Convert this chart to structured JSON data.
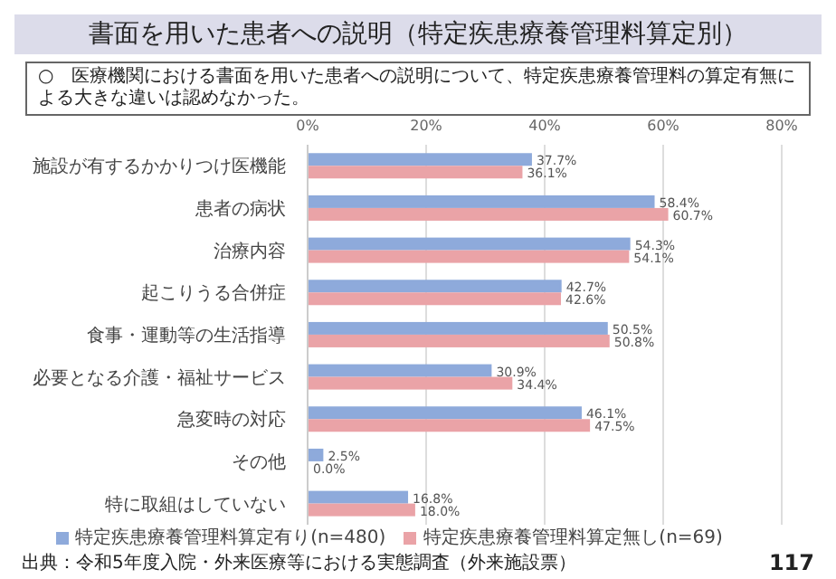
{
  "chart_data": {
    "type": "bar",
    "orientation": "horizontal",
    "title": "書面を用いた患者への説明（特定疾患療養管理料算定別）",
    "subtitle": "○　医療機関における書面を用いた患者への説明について、特定疾患療養管理料の算定有無による大きな違いは認めなかった。",
    "categories": [
      "施設が有するかかりつけ医機能",
      "患者の病状",
      "治療内容",
      "起こりうる合併症",
      "食事・運動等の生活指導",
      "必要となる介護・福祉サービス",
      "急変時の対応",
      "その他",
      "特に取組はしていない"
    ],
    "series": [
      {
        "name": "特定疾患療養管理料算定有り(n=480)",
        "color": "#8eaadb",
        "values": [
          37.7,
          58.4,
          54.3,
          42.7,
          50.5,
          30.9,
          46.1,
          2.5,
          16.8
        ],
        "value_labels": [
          "37.7%",
          "58.4%",
          "54.3%",
          "42.7%",
          "50.5%",
          "30.9%",
          "46.1%",
          "2.5%",
          "16.8%"
        ]
      },
      {
        "name": "特定疾患療養管理料算定無し(n=69)",
        "color": "#eaa3a7",
        "values": [
          36.1,
          60.7,
          54.1,
          42.6,
          50.8,
          34.4,
          47.5,
          0.0,
          18.0
        ],
        "value_labels": [
          "36.1%",
          "60.7%",
          "54.1%",
          "42.6%",
          "50.8%",
          "34.4%",
          "47.5%",
          "0.0%",
          "18.0%"
        ]
      }
    ],
    "xlim": [
      0,
      80
    ],
    "xticks": [
      {
        "value": 0,
        "label": "0%"
      },
      {
        "value": 20,
        "label": "20%"
      },
      {
        "value": 40,
        "label": "40%"
      },
      {
        "value": 60,
        "label": "60%"
      },
      {
        "value": 80,
        "label": "80%"
      }
    ],
    "grid": "x",
    "legend": "bottom",
    "annotations": [
      "出典：令和5年度入院・外来医療等における実態調査（外来施設票）",
      "117"
    ]
  }
}
